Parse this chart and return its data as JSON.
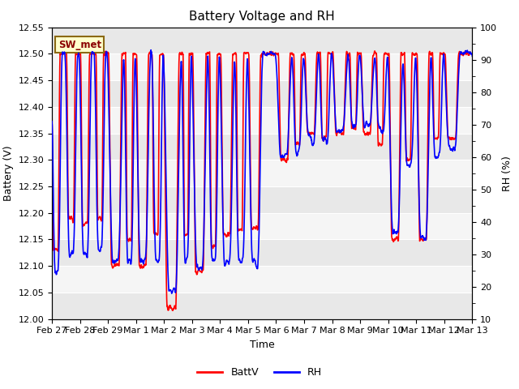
{
  "title": "Battery Voltage and RH",
  "xlabel": "Time",
  "ylabel_left": "Battery (V)",
  "ylabel_right": "RH (%)",
  "ylim_left": [
    12.0,
    12.55
  ],
  "ylim_right": [
    10,
    100
  ],
  "yticks_left": [
    12.0,
    12.05,
    12.1,
    12.15,
    12.2,
    12.25,
    12.3,
    12.35,
    12.4,
    12.45,
    12.5,
    12.55
  ],
  "yticks_right": [
    10,
    20,
    30,
    40,
    50,
    60,
    70,
    80,
    90,
    100
  ],
  "xtick_labels": [
    "Feb 27",
    "Feb 28",
    "Feb 29",
    "Mar 1",
    "Mar 2",
    "Mar 3",
    "Mar 4",
    "Mar 5",
    "Mar 6",
    "Mar 7",
    "Mar 8",
    "Mar 9",
    "Mar 10",
    "Mar 11",
    "Mar 12",
    "Mar 13"
  ],
  "annotation_text": "SW_met",
  "annotation_bg": "#FFFFCC",
  "annotation_border": "#8B6914",
  "legend_labels": [
    "BattV",
    "RH"
  ],
  "legend_colors": [
    "red",
    "blue"
  ],
  "line_color_batt": "red",
  "line_color_rh": "blue",
  "line_width": 1.2,
  "bg_color": "#E8E8E8",
  "band_colors": [
    "#E8E8E8",
    "#F5F5F5"
  ],
  "title_fontsize": 11,
  "tick_fontsize": 8,
  "label_fontsize": 9,
  "figwidth": 6.4,
  "figheight": 4.8,
  "dpi": 100
}
